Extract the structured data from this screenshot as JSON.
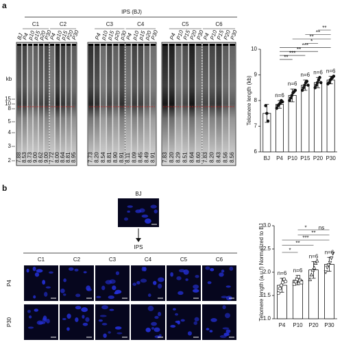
{
  "panel_a": {
    "label": "a",
    "group": "IPS (BJ)",
    "kb_unit": "kb",
    "kb_markers": [
      "15",
      "10",
      "8",
      "5",
      "4",
      "3",
      "2"
    ],
    "gels": [
      {
        "clones": [
          "C1",
          "C2"
        ],
        "lanes": [
          "BJ",
          "P4",
          "p10",
          "p15",
          "p20",
          "P30",
          "P4",
          "p10",
          "p15",
          "P20",
          "P30"
        ],
        "values": [
          "7.88",
          "8.53",
          "8.73",
          "9.00",
          "8.62",
          "9.00",
          "7.72",
          "8.00",
          "8.64",
          "8.81",
          "8.95"
        ]
      },
      {
        "clones": [
          "C3",
          "C4"
        ],
        "lanes": [
          null,
          "P4",
          "p10",
          "p15",
          "p20",
          "p30",
          "P4",
          "p10",
          "p15",
          "p20",
          "P30"
        ],
        "values": [
          "7.73",
          "8.20",
          "8.54",
          "8.81",
          "8.90",
          "8.91",
          "8.11",
          "8.09",
          "8.45",
          "8.49",
          "8.91"
        ]
      },
      {
        "clones": [
          "C5",
          "C6"
        ],
        "lanes": [
          null,
          "P4",
          "P10",
          "P15",
          "P20",
          "P30",
          "P4",
          "P10",
          "P15",
          "P20",
          "P30"
        ],
        "values": [
          "7.83",
          "8.20",
          "8.29",
          "8.51",
          "8.64",
          "8.60",
          "7.83",
          "8.20",
          "8.43",
          "8.56",
          "8.56"
        ]
      }
    ]
  },
  "panel_b": {
    "label": "b",
    "parent": "BJ",
    "derived": "IPS",
    "clones": [
      "C1",
      "C2",
      "C3",
      "C4",
      "C5",
      "C6"
    ],
    "rows": [
      "P4",
      "P30"
    ]
  },
  "chart_data": [
    {
      "type": "bar",
      "y_label": "Telomere length (kb)",
      "categories": [
        "BJ",
        "P4",
        "P10",
        "P15",
        "P20",
        "P30"
      ],
      "values": [
        7.5,
        7.85,
        8.2,
        8.6,
        8.7,
        8.8
      ],
      "errors": [
        0.35,
        0.15,
        0.25,
        0.2,
        0.2,
        0.15
      ],
      "points": [
        [
          7.8,
          7.5,
          7.2
        ],
        [
          7.7,
          7.8,
          7.85,
          7.9,
          8.0,
          7.95
        ],
        [
          8.0,
          8.1,
          8.2,
          8.3,
          8.35,
          8.4
        ],
        [
          8.4,
          8.5,
          8.6,
          8.7,
          8.75,
          8.6
        ],
        [
          8.5,
          8.6,
          8.7,
          8.8,
          8.9,
          8.7
        ],
        [
          8.65,
          8.7,
          8.8,
          8.85,
          8.9,
          8.95
        ]
      ],
      "n_labels": [
        null,
        "n=6",
        "n=6",
        "n=6",
        "n=6",
        "n=6"
      ],
      "significance": [
        "**",
        "**",
        "**",
        "*",
        "***",
        "**",
        "***",
        "**"
      ],
      "color": "#ffffff",
      "ylim": [
        6,
        10
      ],
      "yticks": [
        6,
        7,
        8,
        9,
        10
      ]
    },
    {
      "type": "bar",
      "y_label": "Telomere length (a.u.f) Normalized to BJ",
      "categories": [
        "P4",
        "P10",
        "P20",
        "P30"
      ],
      "values": [
        1.72,
        1.83,
        2.05,
        2.17
      ],
      "errors": [
        0.15,
        0.1,
        0.18,
        0.15
      ],
      "points": [
        [
          1.55,
          1.65,
          1.72,
          1.78,
          1.85,
          1.8
        ],
        [
          1.75,
          1.8,
          1.85,
          1.9,
          1.82,
          1.78
        ],
        [
          1.85,
          1.95,
          2.05,
          2.1,
          2.2,
          2.25
        ],
        [
          2.0,
          2.1,
          2.15,
          2.2,
          2.3,
          2.4
        ]
      ],
      "n_labels": [
        "n=6",
        "n=6",
        "n=6",
        "n=6"
      ],
      "significance": [
        "*",
        "ns",
        "**",
        "***",
        "**",
        "*"
      ],
      "color": "#ffffff",
      "ylim": [
        1.0,
        3.0
      ],
      "yticks": [
        {
          "value": 1.0,
          "label": "1.0"
        },
        1.5,
        {
          "value": 2.0,
          "label": "2.0"
        },
        2.5,
        {
          "value": 3.0,
          "label": "3.0"
        }
      ]
    }
  ]
}
